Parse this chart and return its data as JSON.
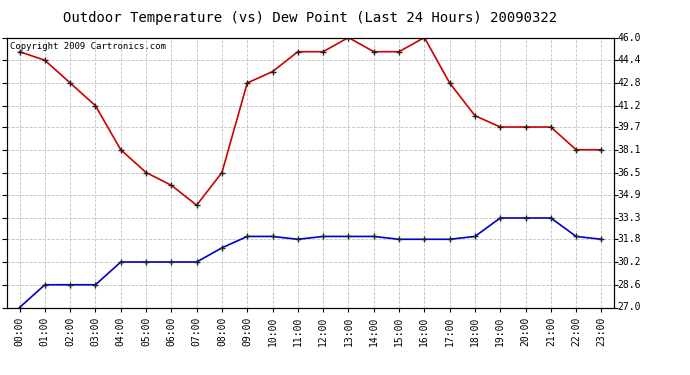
{
  "title": "Outdoor Temperature (vs) Dew Point (Last 24 Hours) 20090322",
  "copyright_text": "Copyright 2009 Cartronics.com",
  "hours": [
    "00:00",
    "01:00",
    "02:00",
    "03:00",
    "04:00",
    "05:00",
    "06:00",
    "07:00",
    "08:00",
    "09:00",
    "10:00",
    "11:00",
    "12:00",
    "13:00",
    "14:00",
    "15:00",
    "16:00",
    "17:00",
    "18:00",
    "19:00",
    "20:00",
    "21:00",
    "22:00",
    "23:00"
  ],
  "temp": [
    45.0,
    44.4,
    42.8,
    41.2,
    38.1,
    36.5,
    35.6,
    34.2,
    36.5,
    42.8,
    43.6,
    45.0,
    45.0,
    46.0,
    45.0,
    45.0,
    46.0,
    42.8,
    40.5,
    39.7,
    39.7,
    39.7,
    38.1,
    38.1
  ],
  "dewpoint": [
    27.0,
    28.6,
    28.6,
    28.6,
    30.2,
    30.2,
    30.2,
    30.2,
    31.2,
    32.0,
    32.0,
    31.8,
    32.0,
    32.0,
    32.0,
    31.8,
    31.8,
    31.8,
    32.0,
    33.3,
    33.3,
    33.3,
    32.0,
    31.8
  ],
  "temp_color": "#cc0000",
  "dewpoint_color": "#0000cc",
  "background_color": "#ffffff",
  "plot_bg_color": "#ffffff",
  "grid_color": "#bbbbbb",
  "ylim_min": 27.0,
  "ylim_max": 46.0,
  "yticks": [
    27.0,
    28.6,
    30.2,
    31.8,
    33.3,
    34.9,
    36.5,
    38.1,
    39.7,
    41.2,
    42.8,
    44.4,
    46.0
  ],
  "title_fontsize": 10,
  "tick_fontsize": 7,
  "copyright_fontsize": 6.5
}
